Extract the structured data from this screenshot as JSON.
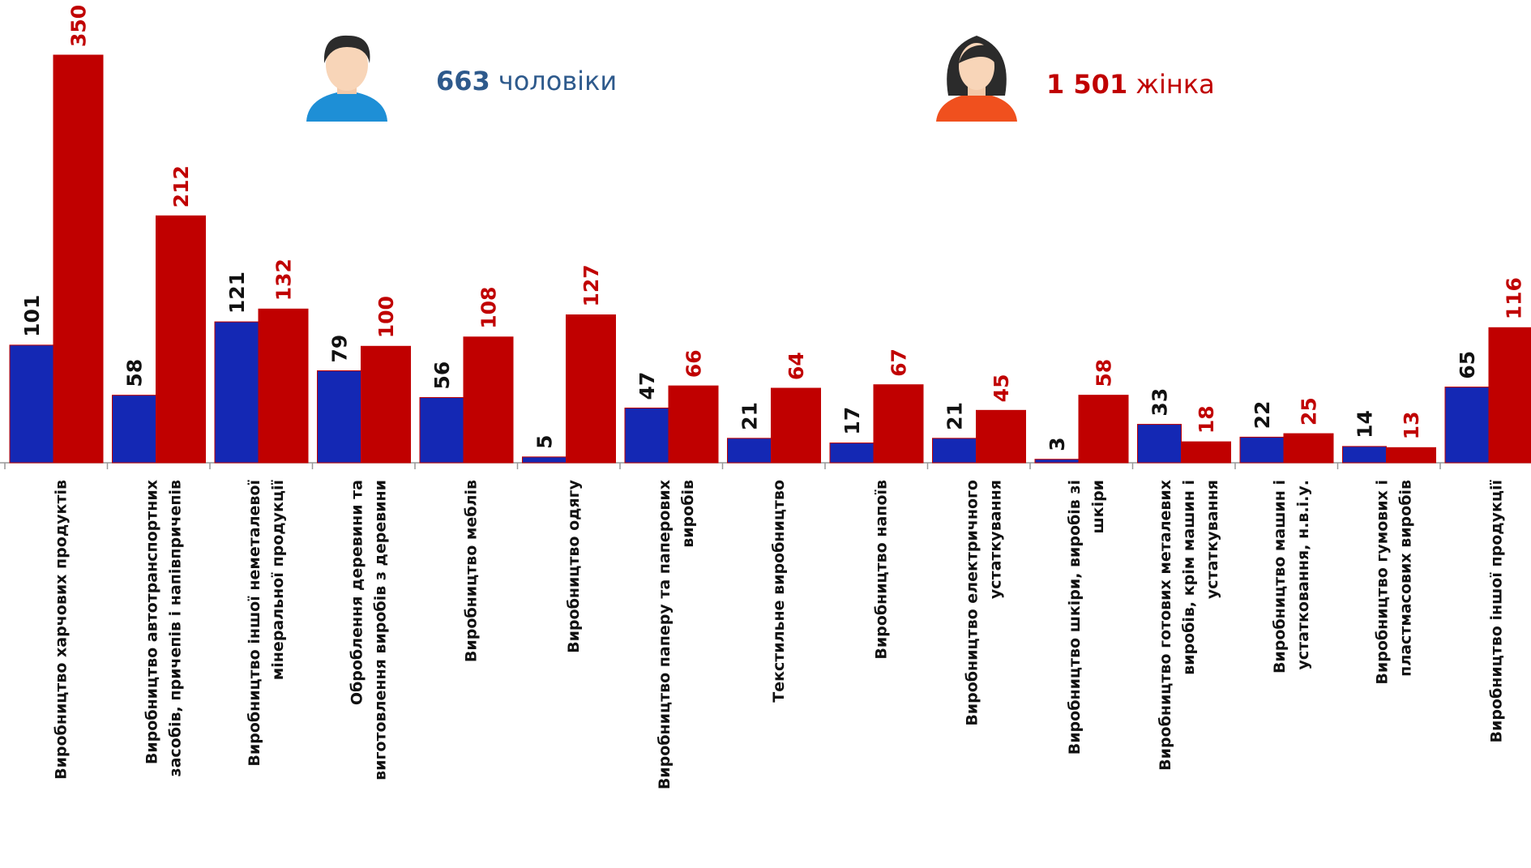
{
  "chart_data": {
    "type": "bar",
    "categories": [
      "Виробництво харчових продуктів",
      "Виробництво автотранспортних\nзасобів, причепів і напівпричепів",
      "Виробництво іншої неметалевої\nмінеральної продукції",
      "Оброблення деревини та\nвиготовлення виробів з деревини",
      "Виробництво меблів",
      "Виробництво одягу",
      "Виробництво паперу та паперових\nвиробів",
      "Текстильне виробництво",
      "Виробництво напоїв",
      "Виробництво електричного\nустаткування",
      "Виробництво шкіри, виробів зі\nшкіри",
      "Виробництво готових металевих\nвиробів, крім машин і\nустаткування",
      "Виробництво машин і\nустатковання, н.в.і.у.",
      "Виробництво гумових і\nпластмасових виробів",
      "Виробництво іншої продукції"
    ],
    "series": [
      {
        "name": "чоловіки",
        "color": "#1428b4",
        "total": 663,
        "values": [
          101,
          58,
          121,
          79,
          56,
          5,
          47,
          21,
          17,
          21,
          3,
          33,
          22,
          14,
          65
        ]
      },
      {
        "name": "жінка",
        "color": "#c00000",
        "total": 1501,
        "total_label": "1 501",
        "values": [
          350,
          212,
          132,
          100,
          108,
          127,
          66,
          64,
          67,
          45,
          58,
          18,
          25,
          13,
          116
        ]
      }
    ],
    "ylim": [
      0,
      350
    ]
  }
}
